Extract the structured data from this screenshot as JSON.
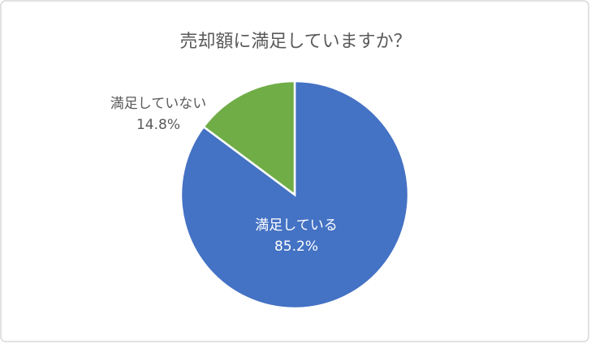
{
  "chart_data": {
    "type": "pie",
    "title": "売却額に満足していますか？",
    "categories": [
      "満足している",
      "満足していない"
    ],
    "values": [
      85.2,
      14.8
    ],
    "value_labels": [
      "85.2%",
      "14.8%"
    ],
    "colors": [
      "#4472c4",
      "#70ad47"
    ]
  }
}
